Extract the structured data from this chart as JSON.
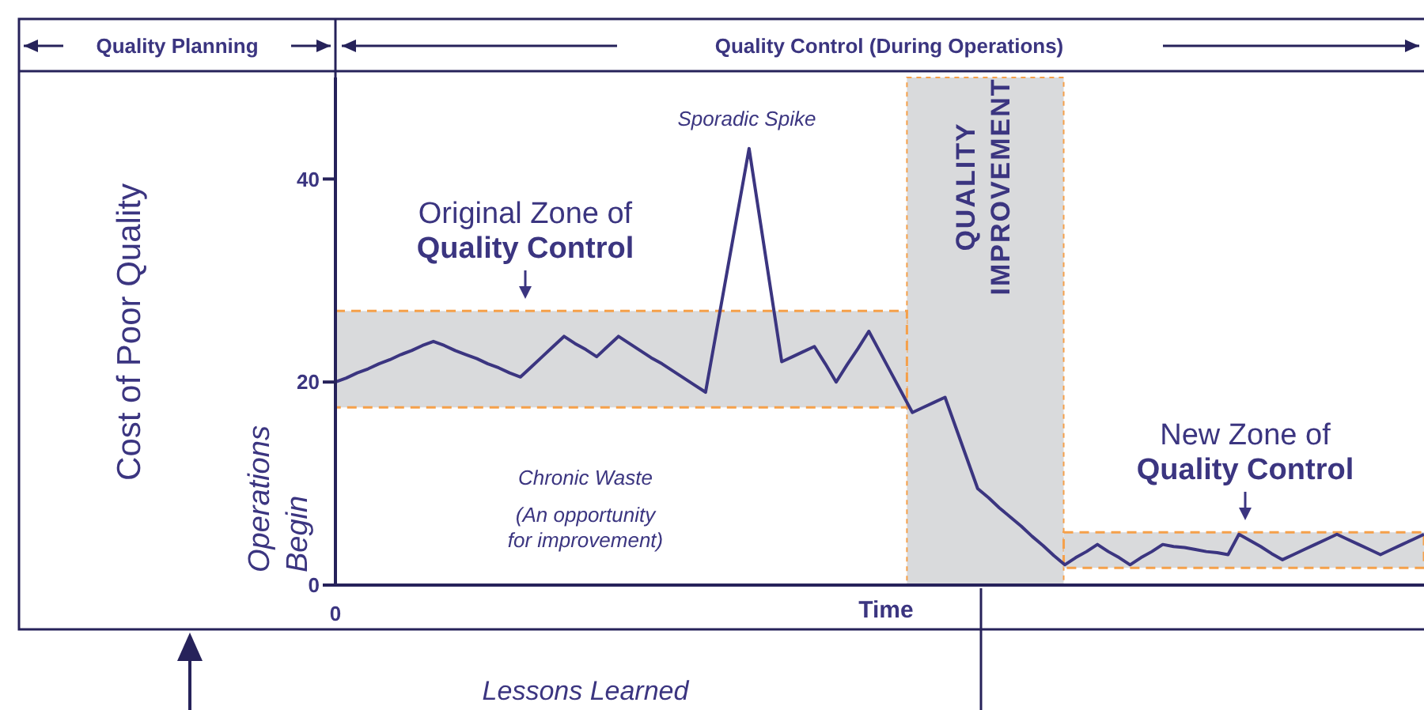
{
  "chart_data": {
    "type": "line",
    "xlabel": "Time",
    "ylabel": "Cost of Poor Quality",
    "categories": [
      null,
      null,
      null,
      null,
      null,
      null,
      null,
      null,
      null,
      null,
      null,
      null,
      null,
      null,
      null,
      null,
      null,
      null,
      null,
      null,
      null,
      null,
      null,
      null,
      null,
      null,
      null,
      null,
      null,
      null,
      null,
      null,
      null,
      null,
      null,
      null,
      null,
      null,
      null,
      null,
      null,
      null,
      null,
      null,
      null,
      null,
      null,
      null,
      null,
      null,
      null,
      null,
      null,
      null,
      null,
      null,
      null,
      null,
      null,
      null,
      null,
      null,
      null,
      null,
      null,
      null,
      null,
      null,
      null,
      null,
      null,
      null,
      null,
      null,
      null,
      null,
      null,
      null,
      null,
      null,
      null,
      null,
      null,
      null,
      null,
      null,
      null,
      null,
      null,
      null,
      null,
      null,
      null,
      null,
      null,
      null,
      null,
      null,
      null,
      null,
      null
    ],
    "series": [
      {
        "color": "#3b3580",
        "values": [
          20,
          20.4,
          20.9,
          21.3,
          21.8,
          22.2,
          22.7,
          23.1,
          23.6,
          24,
          23.6,
          23.1,
          22.7,
          22.3,
          21.8,
          21.4,
          20.9,
          20.5,
          21.5,
          22.5,
          23.5,
          24.5,
          23.8,
          23.2,
          22.5,
          23.5,
          24.5,
          23.8,
          23.1,
          22.4,
          21.8,
          21.1,
          20.4,
          19.7,
          19,
          25,
          31,
          37,
          43,
          36,
          29,
          22,
          22.5,
          23,
          23.5,
          21.8,
          20,
          21.7,
          23.3,
          25,
          23,
          21,
          19,
          17,
          17.5,
          18,
          18.5,
          15.5,
          12.5,
          9.5,
          8.6,
          7.6,
          6.7,
          5.8,
          4.8,
          3.9,
          2.9,
          2,
          2.7,
          3.3,
          4,
          3.3,
          2.7,
          2,
          2.7,
          3.3,
          4,
          3.8,
          3.7,
          3.5,
          3.3,
          3.2,
          3,
          5,
          4.4,
          3.8,
          3.1,
          2.5,
          3,
          3.5,
          4,
          4.5,
          5,
          4.5,
          4,
          3.5,
          3,
          3.5,
          4,
          4.5,
          5
        ]
      }
    ],
    "ylim": [
      0,
      50
    ],
    "yticks": [
      0,
      20,
      40
    ],
    "grid": false,
    "legend": false,
    "marker": "none",
    "line_style": "solid",
    "bands": [
      {
        "axis": "y",
        "from": 17.5,
        "to": 27,
        "color": "#d9dadc"
      },
      {
        "axis": "y",
        "from": 1.7,
        "to": 5.2,
        "color": "#d9dadc"
      }
    ],
    "annotations": [
      "Quality Planning",
      "Quality Control (During Operations)",
      "Lessons Learned",
      "0",
      "Sporadic Spike",
      "Original Zone of Quality Control",
      "New Zone of Quality Control",
      "Chronic Waste",
      "(An opportunity for improvement)",
      "QUALITY IMPROVEMENT",
      "Operations Begin"
    ]
  }
}
